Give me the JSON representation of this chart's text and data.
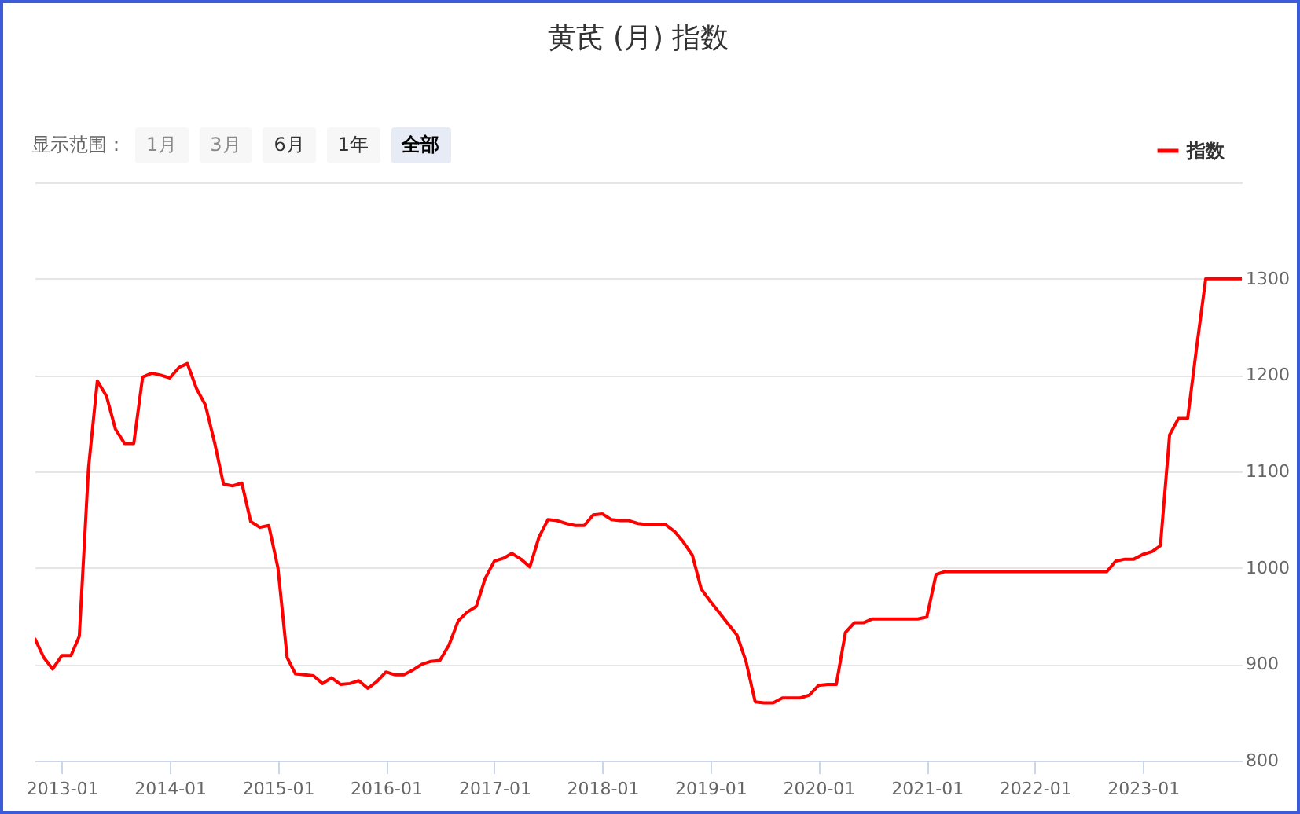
{
  "chart_data": {
    "type": "line",
    "title": "黄芪 (月) 指数",
    "annotations": [
      "显示范围：",
      "1月",
      "3月",
      "6月",
      "1年",
      "全部"
    ],
    "x": [
      "2012-10",
      "2012-11",
      "2012-12",
      "2013-01",
      "2013-02",
      "2013-03",
      "2013-04",
      "2013-05",
      "2013-06",
      "2013-07",
      "2013-08",
      "2013-09",
      "2013-10",
      "2013-11",
      "2013-12",
      "2014-01",
      "2014-02",
      "2014-03",
      "2014-04",
      "2014-05",
      "2014-06",
      "2014-07",
      "2014-08",
      "2014-09",
      "2014-10",
      "2014-11",
      "2014-12",
      "2015-01",
      "2015-02",
      "2015-03",
      "2015-04",
      "2015-05",
      "2015-06",
      "2015-07",
      "2015-08",
      "2015-09",
      "2015-10",
      "2015-11",
      "2015-12",
      "2016-01",
      "2016-02",
      "2016-03",
      "2016-04",
      "2016-05",
      "2016-06",
      "2016-07",
      "2016-08",
      "2016-09",
      "2016-10",
      "2016-11",
      "2016-12",
      "2017-01",
      "2017-02",
      "2017-03",
      "2017-04",
      "2017-05",
      "2017-06",
      "2017-07",
      "2017-08",
      "2017-09",
      "2017-10",
      "2017-11",
      "2017-12",
      "2018-01",
      "2018-02",
      "2018-03",
      "2018-04",
      "2018-05",
      "2018-06",
      "2018-07",
      "2018-08",
      "2018-09",
      "2018-10",
      "2018-11",
      "2018-12",
      "2019-01",
      "2019-02",
      "2019-03",
      "2019-04",
      "2019-05",
      "2019-06",
      "2019-07",
      "2019-08",
      "2019-09",
      "2019-10",
      "2019-11",
      "2019-12",
      "2020-01",
      "2020-02",
      "2020-03",
      "2020-04",
      "2020-05",
      "2020-06",
      "2020-07",
      "2020-08",
      "2020-09",
      "2020-10",
      "2020-11",
      "2020-12",
      "2021-01",
      "2021-02",
      "2021-03",
      "2021-04",
      "2021-05",
      "2021-06",
      "2021-07",
      "2021-08",
      "2021-09",
      "2021-10",
      "2021-11",
      "2021-12",
      "2022-01",
      "2022-02",
      "2022-03",
      "2022-04",
      "2022-05",
      "2022-06",
      "2022-07",
      "2022-08",
      "2022-09",
      "2022-10",
      "2022-11",
      "2022-12",
      "2023-01",
      "2023-02",
      "2023-03",
      "2023-04",
      "2023-05",
      "2023-06",
      "2023-07",
      "2023-08",
      "2023-09",
      "2023-10",
      "2023-11",
      "2023-12"
    ],
    "series": [
      {
        "name": "指数",
        "color": "#ff0000",
        "values": [
          927,
          907,
          895,
          909,
          909,
          929,
          1103,
          1194,
          1178,
          1144,
          1129,
          1129,
          1198,
          1202,
          1200,
          1197,
          1208,
          1212,
          1186,
          1169,
          1130,
          1087,
          1085,
          1088,
          1048,
          1042,
          1044,
          1000,
          907,
          890,
          889,
          888,
          880,
          886,
          879,
          880,
          883,
          875,
          882,
          892,
          889,
          889,
          894,
          900,
          903,
          904,
          920,
          945,
          954,
          960,
          989,
          1007,
          1010,
          1015,
          1009,
          1001,
          1032,
          1050,
          1049,
          1046,
          1044,
          1044,
          1055,
          1056,
          1050,
          1049,
          1049,
          1046,
          1045,
          1045,
          1045,
          1038,
          1027,
          1013,
          978,
          965,
          953,
          942,
          930,
          903,
          861,
          860,
          860,
          865,
          865,
          865,
          868,
          878,
          879,
          879,
          933,
          943,
          943,
          947,
          947,
          947,
          947,
          947,
          947,
          949,
          993,
          996,
          996,
          996,
          996,
          996,
          996,
          996,
          996,
          996,
          996,
          996,
          996,
          996,
          996,
          996,
          996,
          996,
          996,
          996,
          1007,
          1009,
          1009,
          1014,
          1017,
          1023,
          1138,
          1155,
          1155,
          1228,
          1300,
          1300,
          1300,
          1300,
          1300
        ]
      }
    ],
    "xlim": [
      "2012-10",
      "2023-12"
    ],
    "xticks": [
      "2013-01",
      "2014-01",
      "2015-01",
      "2016-01",
      "2017-01",
      "2018-01",
      "2019-01",
      "2020-01",
      "2021-01",
      "2022-01",
      "2023-01"
    ],
    "ylim": [
      800,
      1400
    ],
    "yticks": [
      800,
      900,
      1000,
      1100,
      1200,
      1300,
      {
        "value": 1400,
        "label": null
      }
    ],
    "grid": "y",
    "legend": "top right"
  }
}
